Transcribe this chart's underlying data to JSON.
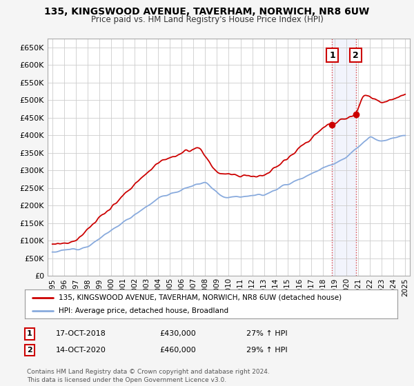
{
  "title1": "135, KINGSWOOD AVENUE, TAVERHAM, NORWICH, NR8 6UW",
  "title2": "Price paid vs. HM Land Registry's House Price Index (HPI)",
  "ylabel_ticks": [
    "£0",
    "£50K",
    "£100K",
    "£150K",
    "£200K",
    "£250K",
    "£300K",
    "£350K",
    "£400K",
    "£450K",
    "£500K",
    "£550K",
    "£600K",
    "£650K"
  ],
  "ytick_values": [
    0,
    50000,
    100000,
    150000,
    200000,
    250000,
    300000,
    350000,
    400000,
    450000,
    500000,
    550000,
    600000,
    650000
  ],
  "ylim": [
    0,
    675000
  ],
  "xlim_start": 1994.6,
  "xlim_end": 2025.4,
  "property_color": "#cc0000",
  "hpi_color": "#88aadd",
  "sale1_x": 2018.8,
  "sale1_y": 430000,
  "sale2_x": 2020.8,
  "sale2_y": 460000,
  "legend_label1": "135, KINGSWOOD AVENUE, TAVERHAM, NORWICH, NR8 6UW (detached house)",
  "legend_label2": "HPI: Average price, detached house, Broadland",
  "note1_date": "17-OCT-2018",
  "note1_price": "£430,000",
  "note1_hpi": "27% ↑ HPI",
  "note2_date": "14-OCT-2020",
  "note2_price": "£460,000",
  "note2_hpi": "29% ↑ HPI",
  "footer": "Contains HM Land Registry data © Crown copyright and database right 2024.\nThis data is licensed under the Open Government Licence v3.0.",
  "background_color": "#f5f5f5",
  "plot_bg_color": "#ffffff",
  "grid_color": "#cccccc"
}
